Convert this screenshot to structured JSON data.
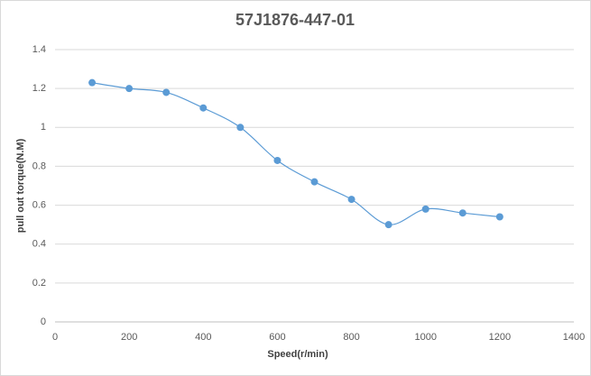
{
  "chart_data": {
    "type": "line",
    "title": "57J1876-447-01",
    "x_label": "Speed(r/min)",
    "y_label": "pull out torque(N.M)",
    "x": [
      100,
      200,
      300,
      400,
      500,
      600,
      700,
      800,
      900,
      1000,
      1100,
      1200
    ],
    "series": [
      {
        "name": "pull out torque",
        "color": "#5b9bd5",
        "values": [
          1.23,
          1.2,
          1.18,
          1.1,
          1.0,
          0.83,
          0.72,
          0.63,
          0.5,
          0.58,
          0.56,
          0.54
        ]
      }
    ],
    "xlim": [
      0,
      1400
    ],
    "xticks": [
      0,
      200,
      400,
      600,
      800,
      1000,
      1200,
      1400
    ],
    "ylim": [
      0,
      1.4
    ],
    "yticks": [
      0,
      0.2,
      0.4,
      0.6,
      0.8,
      1,
      1.2,
      1.4
    ],
    "grid": true,
    "smooth": true
  }
}
